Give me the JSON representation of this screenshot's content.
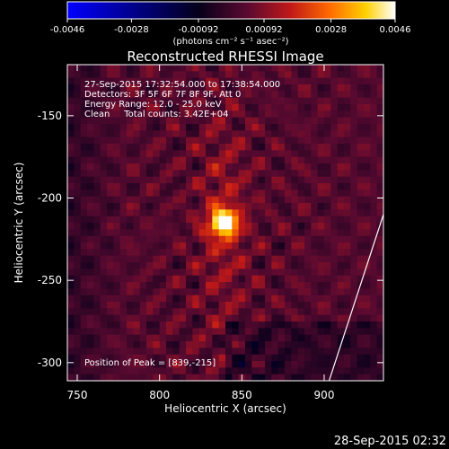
{
  "chart_data": {
    "type": "heatmap",
    "title": "Reconstructed RHESSI Image",
    "xlabel": "Heliocentric X (arcsec)",
    "ylabel": "Heliocentric Y (arcsec)",
    "xlim": [
      744,
      936
    ],
    "ylim": [
      -311,
      -119
    ],
    "x_ticks": [
      750,
      800,
      850,
      900
    ],
    "y_ticks": [
      -150,
      -200,
      -250,
      -300
    ],
    "colorbar": {
      "range": [
        -0.0046,
        0.0046
      ],
      "tick_values": [
        -0.0046,
        -0.0028,
        -0.00092,
        0.00092,
        0.0028,
        0.0046
      ],
      "tick_labels": [
        "-0.0046",
        "-0.0028",
        "-0.00092",
        "0.00092",
        "0.0028",
        "0.0046"
      ],
      "units": "(photons cm⁻² s⁻¹ asec⁻²)",
      "colormap": "blue-black-red-yellow-white"
    },
    "annotations": [
      "27-Sep-2015 17:32:54.000 to 17:38:54.000",
      "Detectors: 3F 5F 6F 7F 8F 9F, Att 0",
      "Energy Range: 12.0 - 25.0 keV",
      "Clean     Total counts: 3.42E+04"
    ],
    "peak_label": "Position of Peak = [839,-215]",
    "peak": {
      "x": 839,
      "y": -215,
      "value": 0.0046
    },
    "limb_line": [
      [
        903,
        -311
      ],
      [
        936,
        -210
      ]
    ],
    "timestamp": "28-Sep-2015 02:32"
  }
}
